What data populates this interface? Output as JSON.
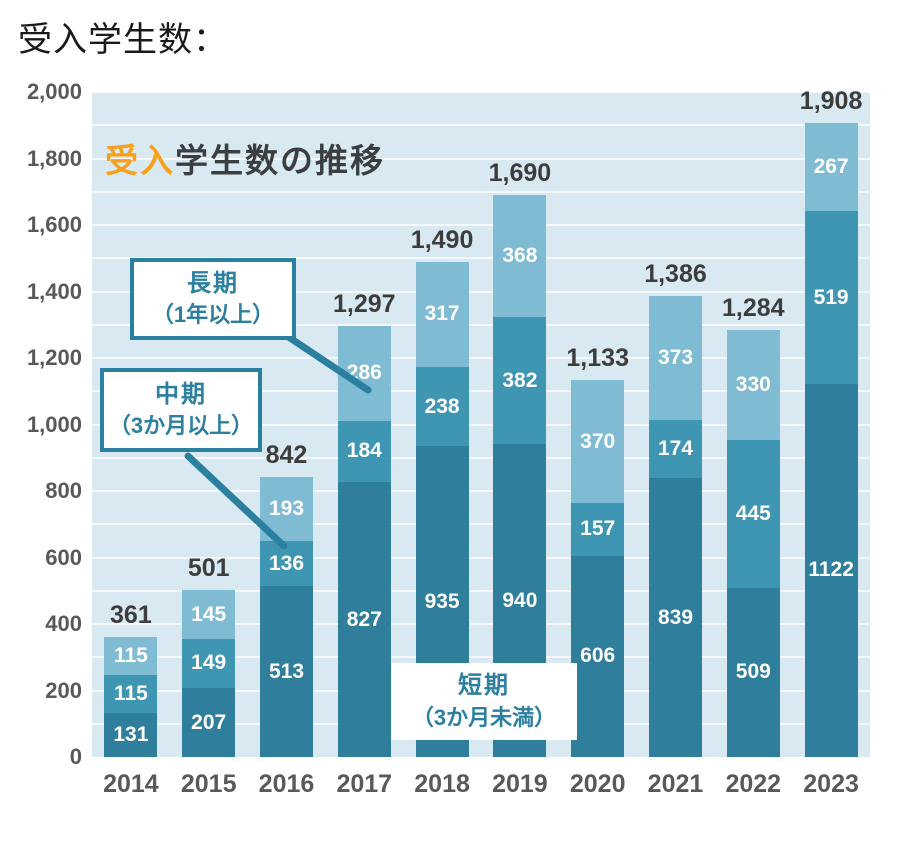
{
  "page": {
    "heading": "受入学生数："
  },
  "chart_title": {
    "highlight": "受入",
    "rest": "学生数の推移"
  },
  "callouts": {
    "long": {
      "line1": "長期",
      "line2": "（1年以上）"
    },
    "mid": {
      "line1": "中期",
      "line2": "（3か月以上）"
    },
    "short": {
      "line1": "短期",
      "line2": "（3か月未満）"
    }
  },
  "colors": {
    "short": "#2e7e9c",
    "mid": "#3e96b2",
    "long": "#7fbbd3",
    "plot_bg": "#d9e9f1",
    "grid": "#ffffff",
    "accent_orange": "#f9a01b",
    "teal_text": "#2b7f9f",
    "axis_text": "#595959",
    "total_text": "#3d3d3d"
  },
  "chart_data": {
    "type": "bar",
    "stacked": true,
    "title": "受入学生数の推移",
    "categories": [
      "2014",
      "2015",
      "2016",
      "2017",
      "2018",
      "2019",
      "2020",
      "2021",
      "2022",
      "2023"
    ],
    "series": [
      {
        "name": "短期（3か月未満）",
        "values": [
          131,
          207,
          513,
          827,
          935,
          940,
          606,
          839,
          509,
          1122
        ]
      },
      {
        "name": "中期（3か月以上）",
        "values": [
          115,
          149,
          136,
          184,
          238,
          382,
          157,
          174,
          445,
          519
        ]
      },
      {
        "name": "長期（1年以上）",
        "values": [
          115,
          145,
          193,
          286,
          317,
          368,
          370,
          373,
          330,
          267
        ]
      }
    ],
    "segment_labels": [
      [
        "131",
        "207",
        "513",
        "827",
        "935",
        "940",
        "606",
        "839",
        "509",
        "1122"
      ],
      [
        "115",
        "149",
        "136",
        "184",
        "238",
        "382",
        "157",
        "174",
        "445",
        "519"
      ],
      [
        "115",
        "145",
        "193",
        "286",
        "317",
        "368",
        "370",
        "373",
        "330",
        "267"
      ]
    ],
    "totals": [
      361,
      501,
      842,
      1297,
      1490,
      1690,
      1133,
      1386,
      1284,
      1908
    ],
    "total_labels": [
      "361",
      "501",
      "842",
      "1,297",
      "1,490",
      "1,690",
      "1,133",
      "1,386",
      "1,284",
      "1,908"
    ],
    "ylim": [
      0,
      2000
    ],
    "ytick_step": 200,
    "grid_step": 100,
    "ytick_labels": [
      "0",
      "200",
      "400",
      "600",
      "800",
      "1,000",
      "1,200",
      "1,400",
      "1,600",
      "1,800",
      "2,000"
    ],
    "grid": true,
    "legend_position": "callout-annotations"
  }
}
